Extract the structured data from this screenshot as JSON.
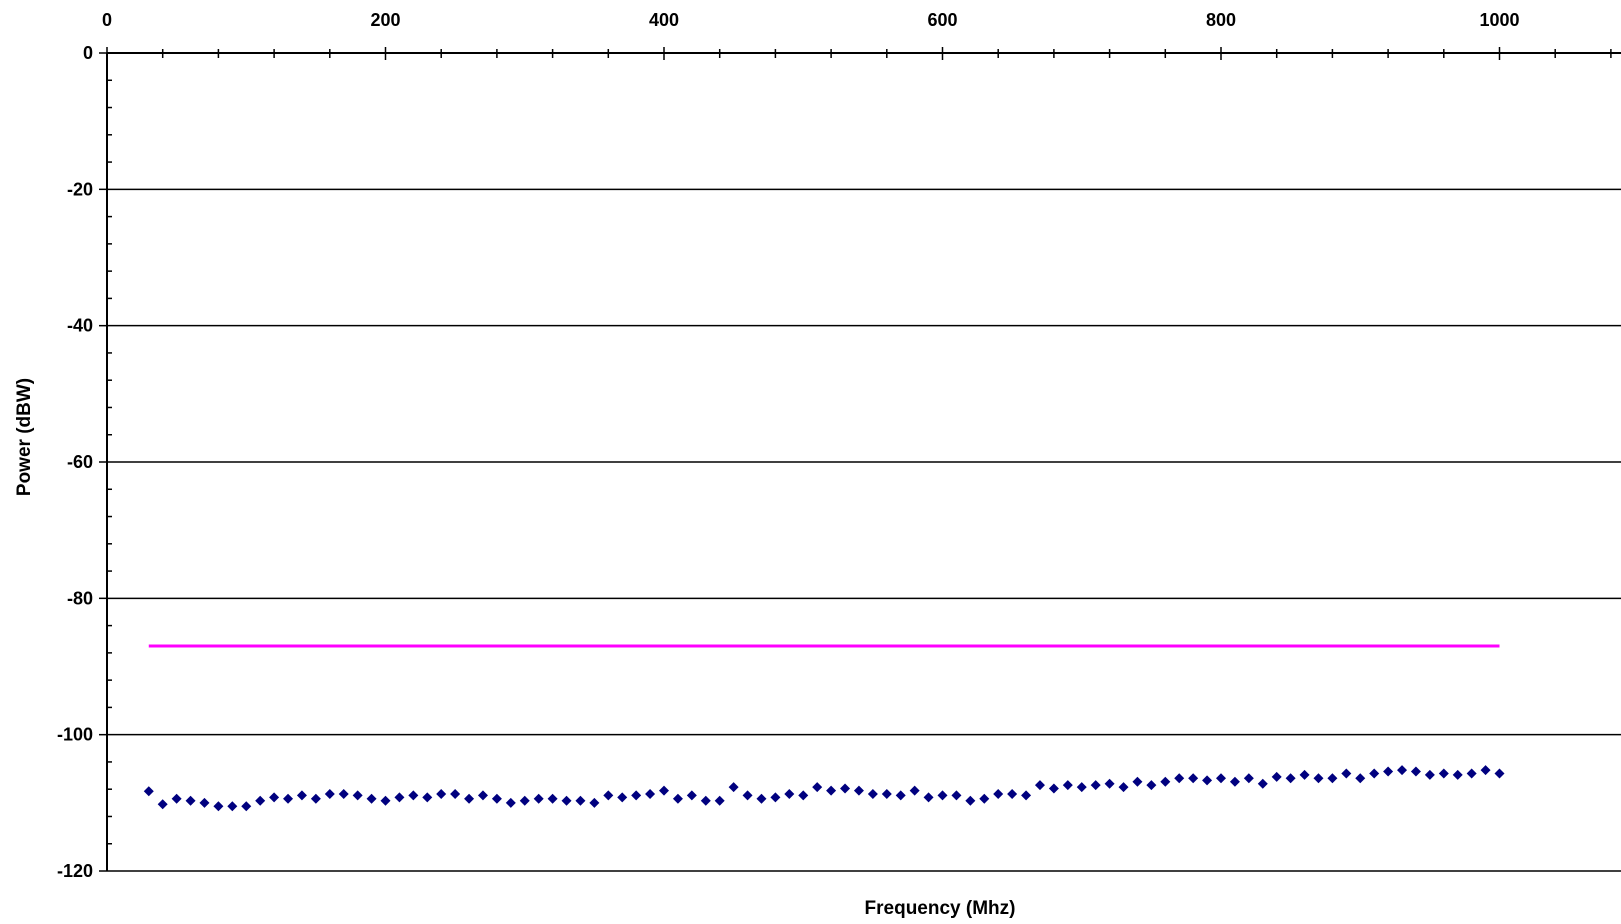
{
  "chart_data": {
    "type": "scatter",
    "title": "",
    "xlabel": "Frequency (Mhz)",
    "ylabel": "Power (dBW)",
    "xlim": [
      0,
      1090
    ],
    "ylim": [
      -120,
      0
    ],
    "x_ticks": [
      0,
      200,
      400,
      600,
      800,
      1000
    ],
    "y_ticks": [
      0,
      -20,
      -40,
      -60,
      -80,
      -100,
      -120
    ],
    "x_tick_labels": [
      "0",
      "200",
      "400",
      "600",
      "800",
      "1000"
    ],
    "y_tick_labels": [
      "0",
      "-20",
      "-40",
      "-60",
      "-80",
      "-100",
      "-120"
    ],
    "x_axis_position": "top",
    "grid": "horizontal major gridlines",
    "legend": "none",
    "colors": {
      "points": "#00007f",
      "limit_line": "#ff00ff"
    },
    "series": [
      {
        "type": "line",
        "color": "#ff00ff",
        "x": [
          30,
          1000
        ],
        "y": [
          -87,
          -87
        ]
      },
      {
        "type": "scatter",
        "marker": "diamond",
        "color": "#00007f",
        "x": [
          30,
          40,
          50,
          60,
          70,
          80,
          90,
          100,
          110,
          120,
          130,
          140,
          150,
          160,
          170,
          180,
          190,
          200,
          210,
          220,
          230,
          240,
          250,
          260,
          270,
          280,
          290,
          300,
          310,
          320,
          330,
          340,
          350,
          360,
          370,
          380,
          390,
          400,
          410,
          420,
          430,
          440,
          450,
          460,
          470,
          480,
          490,
          500,
          510,
          520,
          530,
          540,
          550,
          560,
          570,
          580,
          590,
          600,
          610,
          620,
          630,
          640,
          650,
          660,
          670,
          680,
          690,
          700,
          710,
          720,
          730,
          740,
          750,
          760,
          770,
          780,
          790,
          800,
          810,
          820,
          830,
          840,
          850,
          860,
          870,
          880,
          890,
          900,
          910,
          920,
          930,
          940,
          950,
          960,
          970,
          980,
          990,
          1000
        ],
        "y": [
          -108.3,
          -110.2,
          -109.4,
          -109.7,
          -110.0,
          -110.5,
          -110.5,
          -110.5,
          -109.7,
          -109.2,
          -109.4,
          -108.9,
          -109.4,
          -108.7,
          -108.7,
          -108.9,
          -109.4,
          -109.7,
          -109.2,
          -108.9,
          -109.2,
          -108.7,
          -108.7,
          -109.4,
          -108.9,
          -109.4,
          -110.0,
          -109.7,
          -109.4,
          -109.4,
          -109.7,
          -109.7,
          -110.0,
          -108.9,
          -109.2,
          -108.9,
          -108.7,
          -108.2,
          -109.4,
          -108.9,
          -109.7,
          -109.7,
          -107.7,
          -108.9,
          -109.4,
          -109.2,
          -108.7,
          -108.9,
          -107.7,
          -108.2,
          -107.9,
          -108.2,
          -108.7,
          -108.7,
          -108.9,
          -108.2,
          -109.2,
          -108.9,
          -108.9,
          -109.7,
          -109.4,
          -108.7,
          -108.7,
          -108.9,
          -107.4,
          -107.9,
          -107.4,
          -107.7,
          -107.4,
          -107.2,
          -107.7,
          -106.9,
          -107.4,
          -106.9,
          -106.4,
          -106.4,
          -106.7,
          -106.4,
          -106.9,
          -106.4,
          -107.2,
          -106.2,
          -106.4,
          -105.9,
          -106.4,
          -106.4,
          -105.7,
          -106.4,
          -105.7,
          -105.4,
          -105.2,
          -105.4,
          -105.9,
          -105.7,
          -105.9,
          -105.7,
          -105.2,
          -105.7
        ]
      }
    ]
  }
}
